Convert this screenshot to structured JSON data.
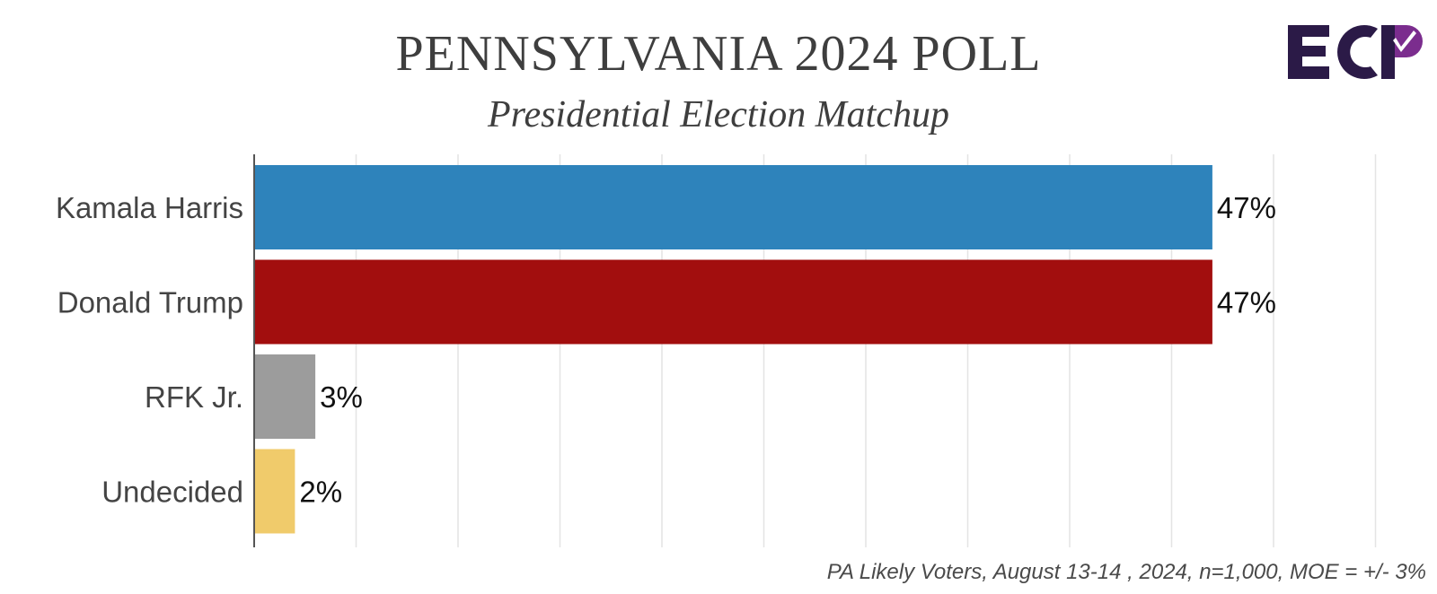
{
  "header": {
    "title": "PENNSYLVANIA 2024 POLL",
    "subtitle": "Presidential Election Matchup",
    "logo_text": "ECP",
    "logo_colors": {
      "dark": "#2b1a47",
      "purple": "#7b2d8e"
    }
  },
  "footer": {
    "source": "PA Likely Voters, August 13-14 , 2024, n=1,000, MOE = +/- 3%"
  },
  "chart_data": {
    "type": "bar",
    "orientation": "horizontal",
    "title": "PENNSYLVANIA 2024 POLL",
    "subtitle": "Presidential Election Matchup",
    "categories": [
      "Kamala Harris",
      "Donald Trump",
      "RFK Jr.",
      "Undecided"
    ],
    "values": [
      47,
      47,
      3,
      2
    ],
    "value_labels": [
      "47%",
      "47%",
      "3%",
      "2%"
    ],
    "colors": [
      "#2e83bb",
      "#a20e0e",
      "#9c9c9c",
      "#f0cb6b"
    ],
    "xlim": [
      0,
      55
    ],
    "grid": true,
    "legend": "none"
  }
}
